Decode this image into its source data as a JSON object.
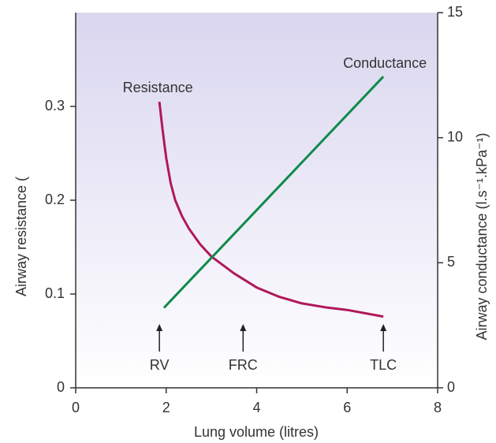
{
  "chart_data": {
    "type": "line",
    "x_label": "Lung volume (litres)",
    "y_label": "Airway resistance (",
    "y2_label": "Airway conductance (l.s⁻¹.kPa⁻¹)",
    "xlim": [
      0,
      8
    ],
    "xticks": [
      0,
      2,
      4,
      6,
      8
    ],
    "ylim": [
      0,
      0.4
    ],
    "yticks": [
      0,
      0.1,
      0.2,
      0.3
    ],
    "y2lim": [
      0,
      15
    ],
    "y2ticks": [
      0,
      5,
      10,
      15
    ],
    "series": [
      {
        "name": "Resistance",
        "color": "#b0185a",
        "x": [
          1.85,
          1.92,
          2.0,
          2.1,
          2.2,
          2.35,
          2.5,
          2.75,
          3.0,
          3.5,
          4.0,
          4.5,
          5.0,
          5.5,
          6.0,
          6.8
        ],
        "values": [
          0.305,
          0.275,
          0.245,
          0.218,
          0.2,
          0.183,
          0.17,
          0.153,
          0.14,
          0.122,
          0.107,
          0.097,
          0.09,
          0.086,
          0.083,
          0.076
        ]
      },
      {
        "name": "Conductance",
        "color": "#0f8a4a",
        "axis": "y2",
        "x": [
          1.95,
          6.8
        ],
        "values": [
          3.2,
          12.44
        ]
      }
    ],
    "annotations": [
      {
        "text": "RV",
        "x": 1.85
      },
      {
        "text": "FRC",
        "x": 3.7
      },
      {
        "text": "TLC",
        "x": 6.8
      }
    ]
  }
}
